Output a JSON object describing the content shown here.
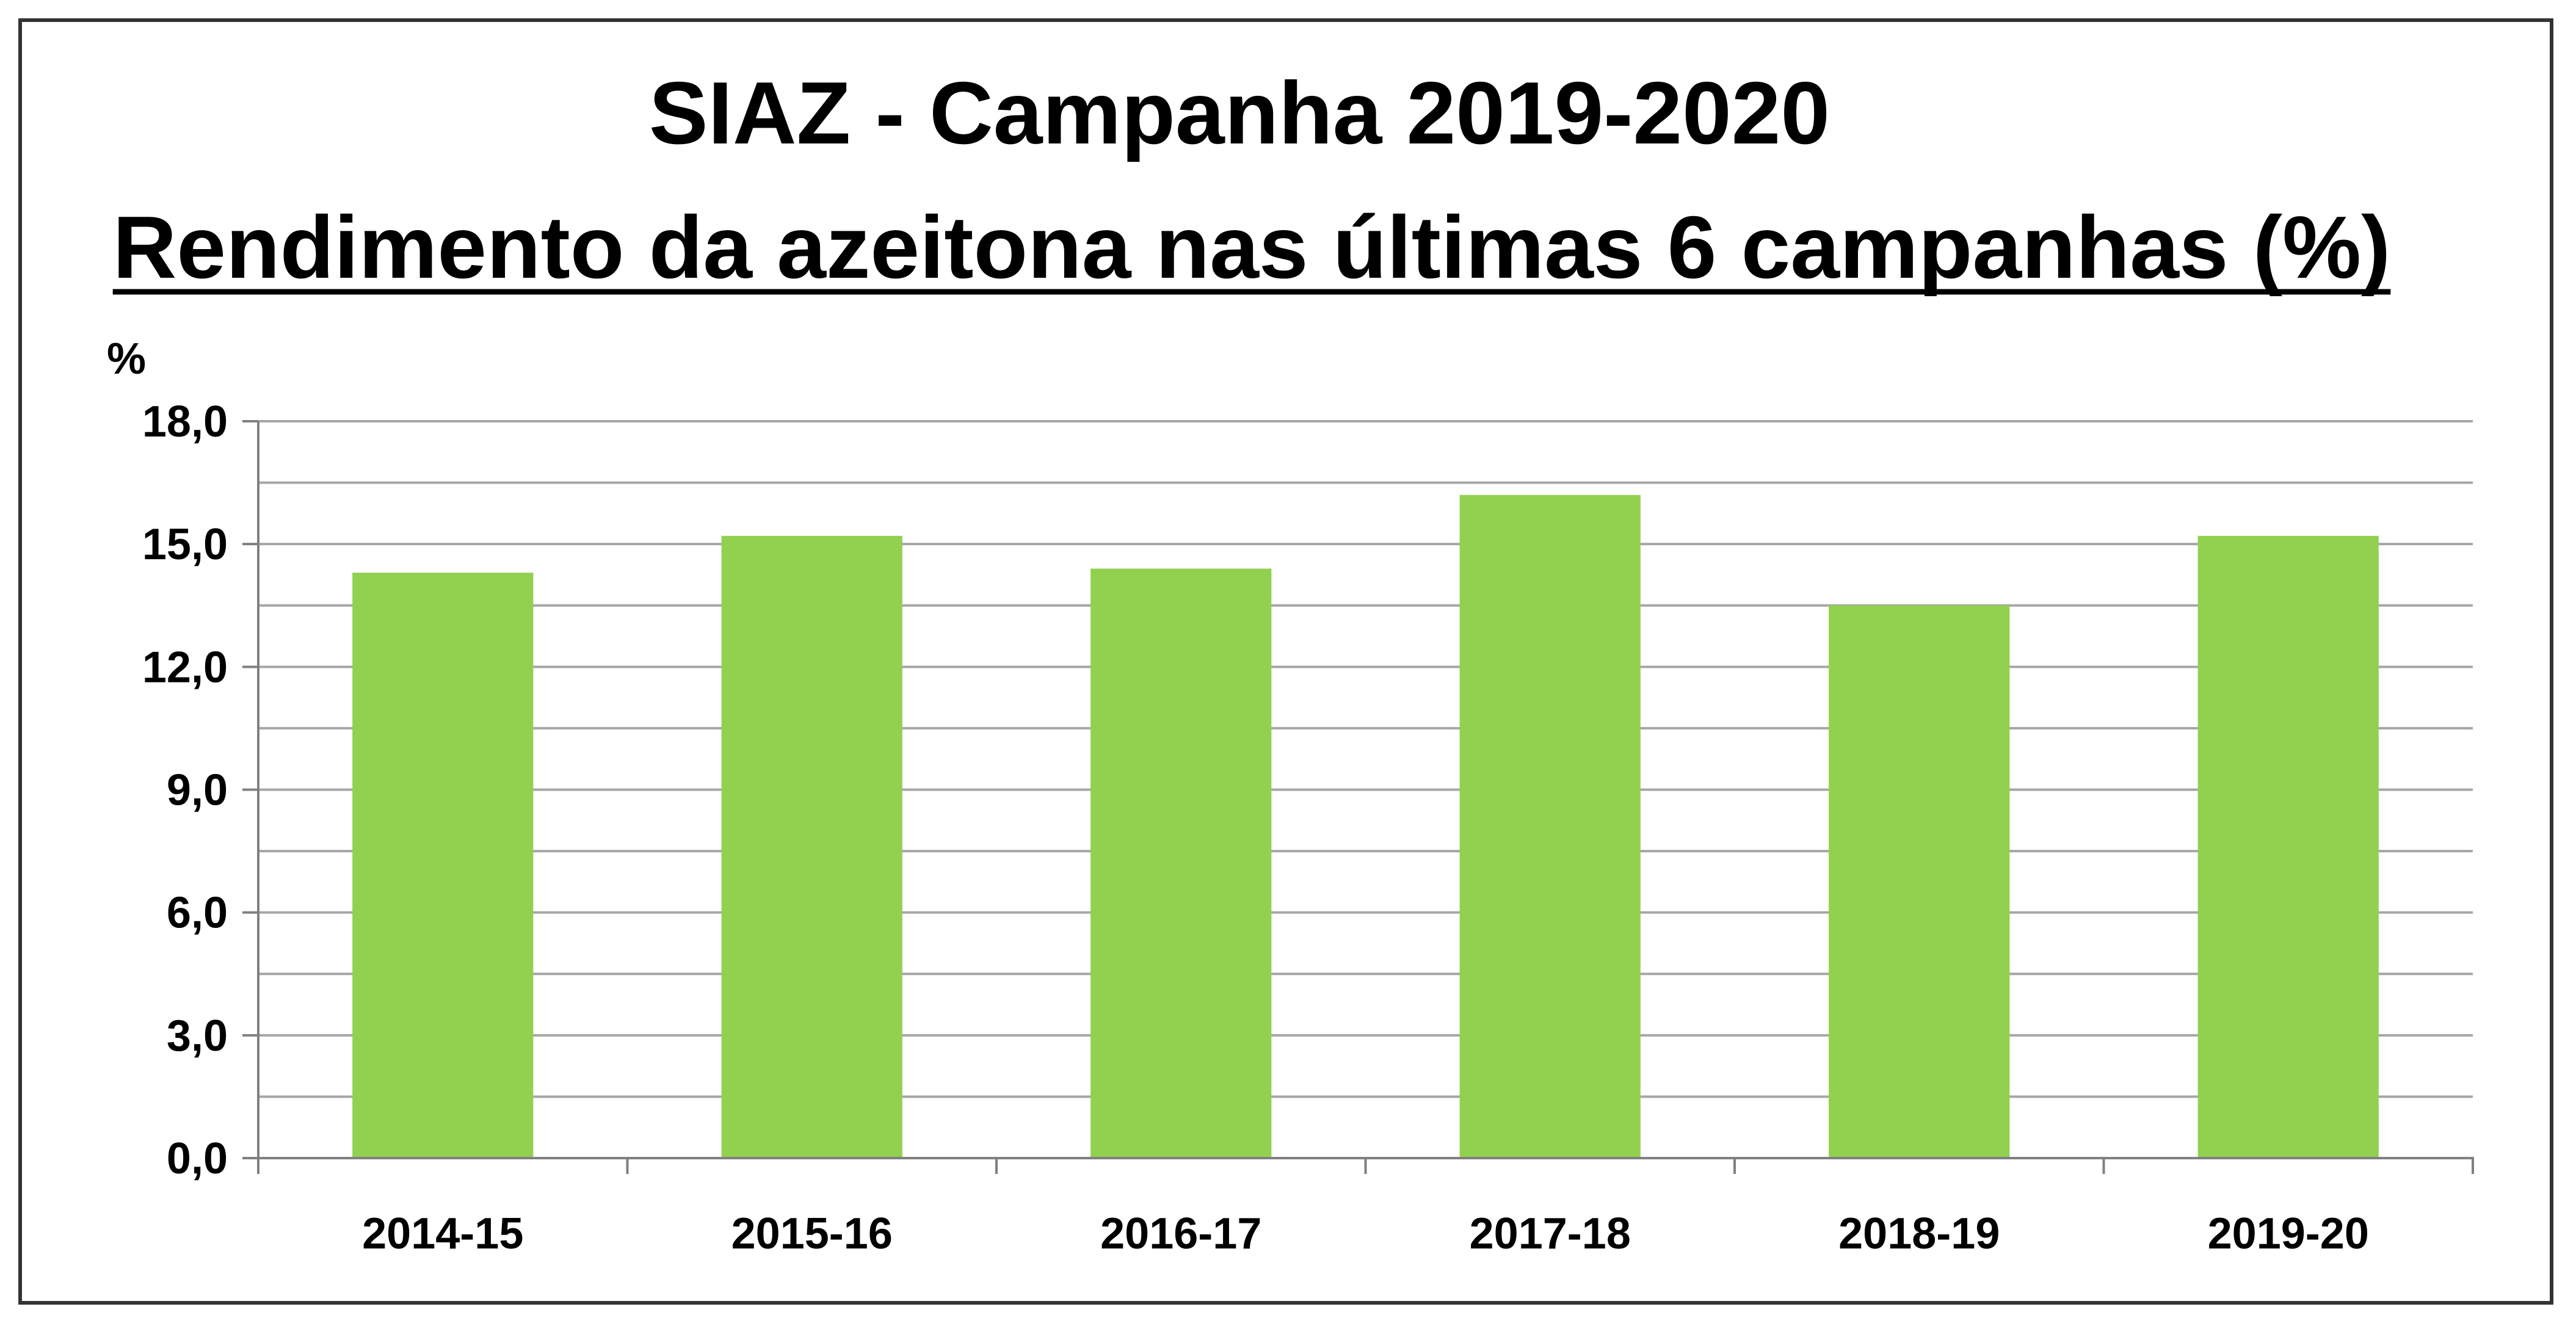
{
  "chart_data": {
    "type": "bar",
    "title": "SIAZ - Campanha 2019-2020",
    "subtitle": "Rendimento da azeitona nas últimas 6 campanhas (%)",
    "ylabel": "%",
    "xlabel": "",
    "categories": [
      "2014-15",
      "2015-16",
      "2016-17",
      "2017-18",
      "2018-19",
      "2019-20"
    ],
    "values": [
      14.3,
      15.2,
      14.4,
      16.2,
      13.5,
      15.2
    ],
    "ylim": [
      0,
      18
    ],
    "yticks": [
      "0,0",
      "3,0",
      "6,0",
      "9,0",
      "12,0",
      "15,0",
      "18,0"
    ],
    "ytick_values": [
      0,
      3,
      6,
      9,
      12,
      15,
      18
    ],
    "minor_grid_step": 1.5,
    "grid": true,
    "legend": "none",
    "bar_color": "#92d050",
    "grid_color": "#a6a6a6",
    "axis_color": "#808080"
  }
}
